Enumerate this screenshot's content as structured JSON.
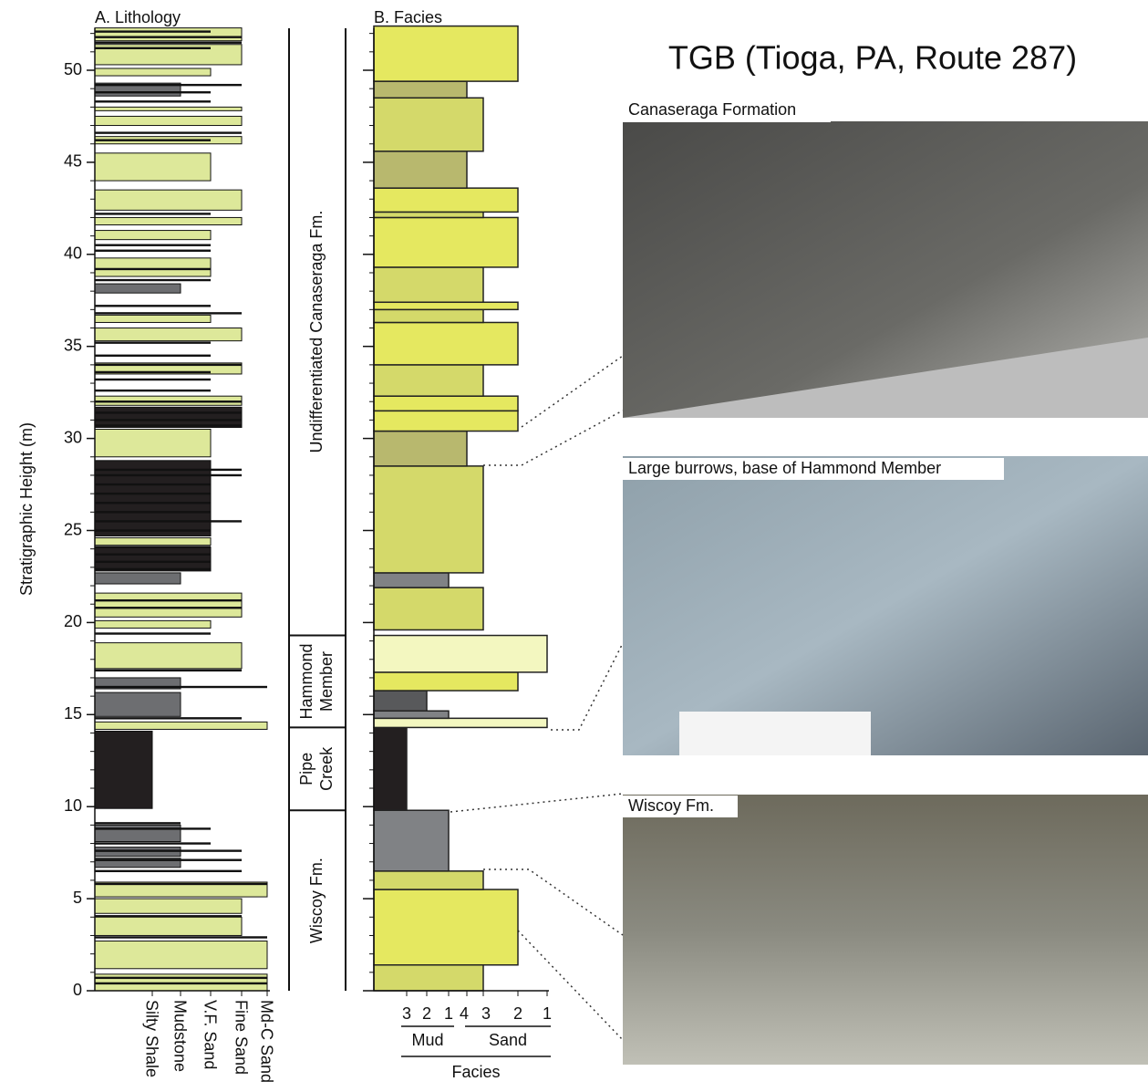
{
  "axis": {
    "label": "Stratigraphic Height (m)",
    "ylim": [
      0,
      52.3
    ],
    "yticks": [
      0,
      5,
      10,
      15,
      20,
      25,
      30,
      35,
      40,
      45,
      50
    ]
  },
  "lithology": {
    "title": "A. Lithology",
    "classes": [
      "Silty Shale",
      "Mudstone",
      "V.F. Sand",
      "Fine Sand",
      "Md-C Sand"
    ],
    "colors": [
      "#231f20",
      "#6d6e71",
      "#dde89a"
    ],
    "beds": [
      [
        0,
        0.9,
        4,
        2
      ],
      [
        1.2,
        2.7,
        4,
        2
      ],
      [
        3.0,
        4.0,
        3,
        2
      ],
      [
        4.2,
        5.0,
        3,
        2
      ],
      [
        5.1,
        5.9,
        4,
        2
      ],
      [
        6.7,
        7.2,
        1,
        1
      ],
      [
        7.3,
        7.8,
        1,
        1
      ],
      [
        8.1,
        9.0,
        1,
        1
      ],
      [
        9.9,
        14.1,
        0,
        0
      ],
      [
        14.2,
        14.6,
        4,
        2
      ],
      [
        14.9,
        16.2,
        1,
        1
      ],
      [
        16.4,
        17.0,
        1,
        1
      ],
      [
        17.5,
        18.9,
        3,
        2
      ],
      [
        19.7,
        20.1,
        2,
        2
      ],
      [
        20.3,
        21.6,
        3,
        2
      ],
      [
        22.1,
        22.7,
        1,
        1
      ],
      [
        22.8,
        24.1,
        2,
        0
      ],
      [
        24.2,
        24.6,
        2,
        2
      ],
      [
        24.7,
        28.8,
        2,
        0
      ],
      [
        29.0,
        30.5,
        2,
        2
      ],
      [
        30.6,
        31.7,
        3,
        0
      ],
      [
        31.8,
        32.3,
        3,
        2
      ],
      [
        33.5,
        34.1,
        3,
        2
      ],
      [
        35.3,
        36.0,
        3,
        2
      ],
      [
        36.3,
        36.7,
        2,
        2
      ],
      [
        37.9,
        38.4,
        1,
        1
      ],
      [
        38.8,
        39.8,
        2,
        2
      ],
      [
        40.8,
        41.3,
        2,
        2
      ],
      [
        41.6,
        42.0,
        3,
        2
      ],
      [
        42.4,
        43.5,
        3,
        2
      ],
      [
        44.0,
        45.5,
        2,
        2
      ],
      [
        46.0,
        46.4,
        3,
        2
      ],
      [
        47.0,
        47.5,
        3,
        2
      ],
      [
        47.8,
        48.0,
        3,
        2
      ],
      [
        48.6,
        49.3,
        1,
        1
      ],
      [
        49.7,
        50.1,
        2,
        2
      ],
      [
        50.3,
        51.4,
        3,
        2
      ],
      [
        51.6,
        52.3,
        3,
        2
      ]
    ],
    "thin_beds": [
      [
        0.4,
        4
      ],
      [
        0.7,
        4
      ],
      [
        2.9,
        4
      ],
      [
        4.05,
        3
      ],
      [
        5.8,
        4
      ],
      [
        6.5,
        3
      ],
      [
        7.1,
        3
      ],
      [
        7.6,
        3
      ],
      [
        8.0,
        2
      ],
      [
        8.8,
        2
      ],
      [
        9.1,
        1
      ],
      [
        14.8,
        3
      ],
      [
        16.5,
        4
      ],
      [
        17.4,
        3
      ],
      [
        19.4,
        2
      ],
      [
        20.8,
        3
      ],
      [
        21.2,
        3
      ],
      [
        22.9,
        2
      ],
      [
        23.3,
        2
      ],
      [
        23.7,
        2
      ],
      [
        24.1,
        2
      ],
      [
        25,
        2
      ],
      [
        25.5,
        3
      ],
      [
        26,
        2
      ],
      [
        26.5,
        2
      ],
      [
        27,
        2
      ],
      [
        27.5,
        2
      ],
      [
        28,
        3
      ],
      [
        28.3,
        3
      ],
      [
        30.7,
        3
      ],
      [
        31,
        3
      ],
      [
        31.4,
        3
      ],
      [
        32,
        3
      ],
      [
        32.6,
        2
      ],
      [
        33.2,
        2
      ],
      [
        33.6,
        2
      ],
      [
        34,
        3
      ],
      [
        34.5,
        2
      ],
      [
        35.2,
        2
      ],
      [
        36.8,
        3
      ],
      [
        37.2,
        2
      ],
      [
        38.6,
        2
      ],
      [
        39.2,
        2
      ],
      [
        40.2,
        2
      ],
      [
        40.5,
        2
      ],
      [
        42.2,
        2
      ],
      [
        46.2,
        2
      ],
      [
        46.6,
        3
      ],
      [
        48.3,
        2
      ],
      [
        48.8,
        2
      ],
      [
        49.2,
        3
      ],
      [
        51.2,
        2
      ],
      [
        51.5,
        3
      ],
      [
        51.8,
        3
      ],
      [
        52.1,
        2
      ]
    ]
  },
  "units": [
    {
      "name": "Wiscoy Fm.",
      "range": [
        0,
        9.8
      ]
    },
    {
      "name": "Pipe Creek",
      "range": [
        9.8,
        14.3
      ]
    },
    {
      "name": "Hammond Member",
      "range": [
        14.3,
        19.3
      ]
    },
    {
      "name": "Undifferentiated Canaseraga Fm.",
      "range": [
        19.3,
        52.3
      ]
    }
  ],
  "facies": {
    "title": "B. Facies",
    "classes": [
      "3",
      "2",
      "1",
      "4",
      "3",
      "2",
      "1"
    ],
    "groups": [
      "Mud",
      "Sand"
    ],
    "axis_label": "Facies",
    "colors": [
      "#231f20",
      "#58595b",
      "#808285",
      "#b8b86e",
      "#d4d96a",
      "#e5e860",
      "#f3f7c0"
    ],
    "beds": [
      [
        0,
        1.4,
        4
      ],
      [
        1.4,
        5.5,
        5
      ],
      [
        5.5,
        6.5,
        4
      ],
      [
        6.5,
        9.8,
        2
      ],
      [
        9.8,
        14.3,
        0
      ],
      [
        14.3,
        14.8,
        6
      ],
      [
        14.8,
        15.2,
        2
      ],
      [
        15.2,
        16.3,
        1
      ],
      [
        16.3,
        17.3,
        5
      ],
      [
        17.3,
        19.3,
        6
      ],
      [
        19.6,
        21.9,
        4
      ],
      [
        21.9,
        22.7,
        2
      ],
      [
        22.7,
        28.5,
        4
      ],
      [
        28.5,
        30.4,
        3
      ],
      [
        30.4,
        31.5,
        5
      ],
      [
        31.5,
        32.3,
        5
      ],
      [
        32.3,
        34.0,
        4
      ],
      [
        34.0,
        36.3,
        5
      ],
      [
        36.3,
        37.0,
        4
      ],
      [
        37.0,
        37.4,
        5
      ],
      [
        37.4,
        39.3,
        4
      ],
      [
        39.3,
        42.0,
        5
      ],
      [
        42.0,
        42.3,
        4
      ],
      [
        42.3,
        43.6,
        5
      ],
      [
        43.6,
        45.6,
        3
      ],
      [
        45.6,
        48.5,
        4
      ],
      [
        48.5,
        49.4,
        3
      ],
      [
        49.4,
        52.4,
        5
      ]
    ]
  },
  "title": "TGB (Tioga, PA, Route 287)",
  "photos": [
    "Canaseraga Formation",
    "Large burrows, base of Hammond Member",
    "Wiscoy Fm."
  ]
}
